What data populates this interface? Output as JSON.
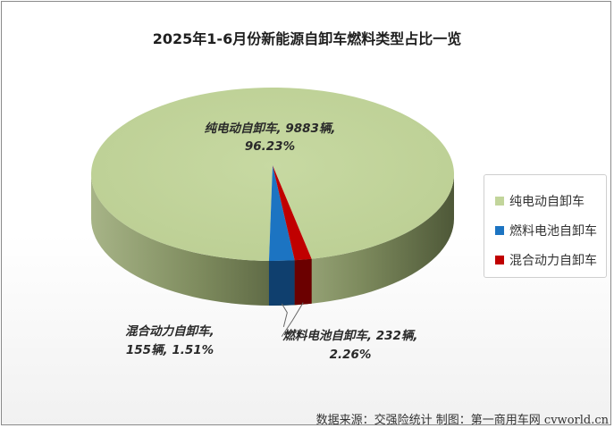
{
  "chart_data": {
    "type": "pie",
    "title": "2025年1-6月份新能源自卸车燃料类型占比一览",
    "categories": [
      "纯电动自卸车",
      "燃料电池自卸车",
      "混合动力自卸车"
    ],
    "values": [
      9883,
      232,
      155
    ],
    "percents": [
      96.23,
      2.26,
      1.51
    ],
    "units": "辆",
    "colors": [
      "#c2d59b",
      "#1c74c2",
      "#c00000"
    ],
    "side_colors": [
      "#8c9c6a",
      "#0f3f6e",
      "#6b0000"
    ],
    "legend_position": "right",
    "data_labels": [
      {
        "line1": "纯电动自卸车, 9883辆,",
        "line2": "96.23%"
      },
      {
        "line1": "燃料电池自卸车, 232辆,",
        "line2": "2.26%"
      },
      {
        "line1": "混合动力自卸车,",
        "line2": "155辆, 1.51%"
      }
    ]
  },
  "source_note": "数据来源：交强险统计 制图：第一商用车网 cvworld.cn"
}
